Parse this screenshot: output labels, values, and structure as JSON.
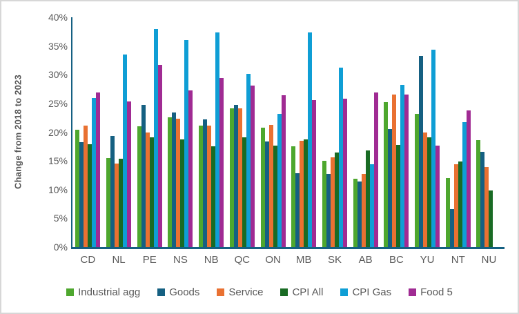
{
  "chart_data": {
    "type": "bar",
    "title": "",
    "ylabel": "Change from 2018 to 2023",
    "xlabel": "",
    "ylim": [
      0,
      40
    ],
    "grid": false,
    "legend_position": "bottom",
    "axis_color": "#156082",
    "text_color": "#595959",
    "yticks": [
      {
        "label": "0%",
        "value": 0
      },
      {
        "label": "5%",
        "value": 5
      },
      {
        "label": "10%",
        "value": 10
      },
      {
        "label": "15%",
        "value": 15
      },
      {
        "label": "20%",
        "value": 20
      },
      {
        "label": "25%",
        "value": 25
      },
      {
        "label": "30%",
        "value": 30
      },
      {
        "label": "35%",
        "value": 35
      },
      {
        "label": "40%",
        "value": 40
      }
    ],
    "categories": [
      "CD",
      "NL",
      "PE",
      "NS",
      "NB",
      "QC",
      "ON",
      "MB",
      "SK",
      "AB",
      "BC",
      "YU",
      "NT",
      "NU"
    ],
    "series": [
      {
        "name": "Industrial agg",
        "color": "#4EA72E",
        "values": [
          20.4,
          15.5,
          21.0,
          22.6,
          21.2,
          24.2,
          20.8,
          17.5,
          15.0,
          11.9,
          25.2,
          23.2,
          12.0,
          18.6
        ]
      },
      {
        "name": "Goods",
        "color": "#156082",
        "values": [
          18.3,
          19.4,
          24.7,
          23.4,
          22.2,
          24.7,
          18.4,
          12.9,
          12.7,
          11.4,
          20.5,
          33.3,
          6.6,
          16.6
        ]
      },
      {
        "name": "Service",
        "color": "#E97132",
        "values": [
          21.2,
          14.5,
          19.9,
          22.4,
          21.1,
          24.2,
          21.3,
          18.5,
          15.6,
          12.7,
          26.5,
          20.0,
          14.4,
          13.9
        ]
      },
      {
        "name": "CPI All",
        "color": "#196B24",
        "values": [
          17.9,
          15.4,
          19.1,
          18.8,
          17.5,
          19.1,
          17.7,
          18.7,
          16.5,
          16.8,
          17.8,
          19.1,
          14.9,
          9.9
        ]
      },
      {
        "name": "CPI Gas",
        "color": "#0F9ED5",
        "values": [
          25.9,
          33.5,
          37.9,
          36.0,
          37.3,
          30.1,
          23.2,
          37.4,
          31.2,
          14.4,
          28.2,
          34.4,
          21.7,
          null
        ]
      },
      {
        "name": "Food 5",
        "color": "#A02B93",
        "values": [
          26.9,
          25.4,
          31.7,
          27.3,
          29.4,
          28.1,
          26.4,
          25.6,
          25.8,
          26.9,
          26.5,
          17.7,
          23.8,
          null
        ]
      }
    ]
  }
}
